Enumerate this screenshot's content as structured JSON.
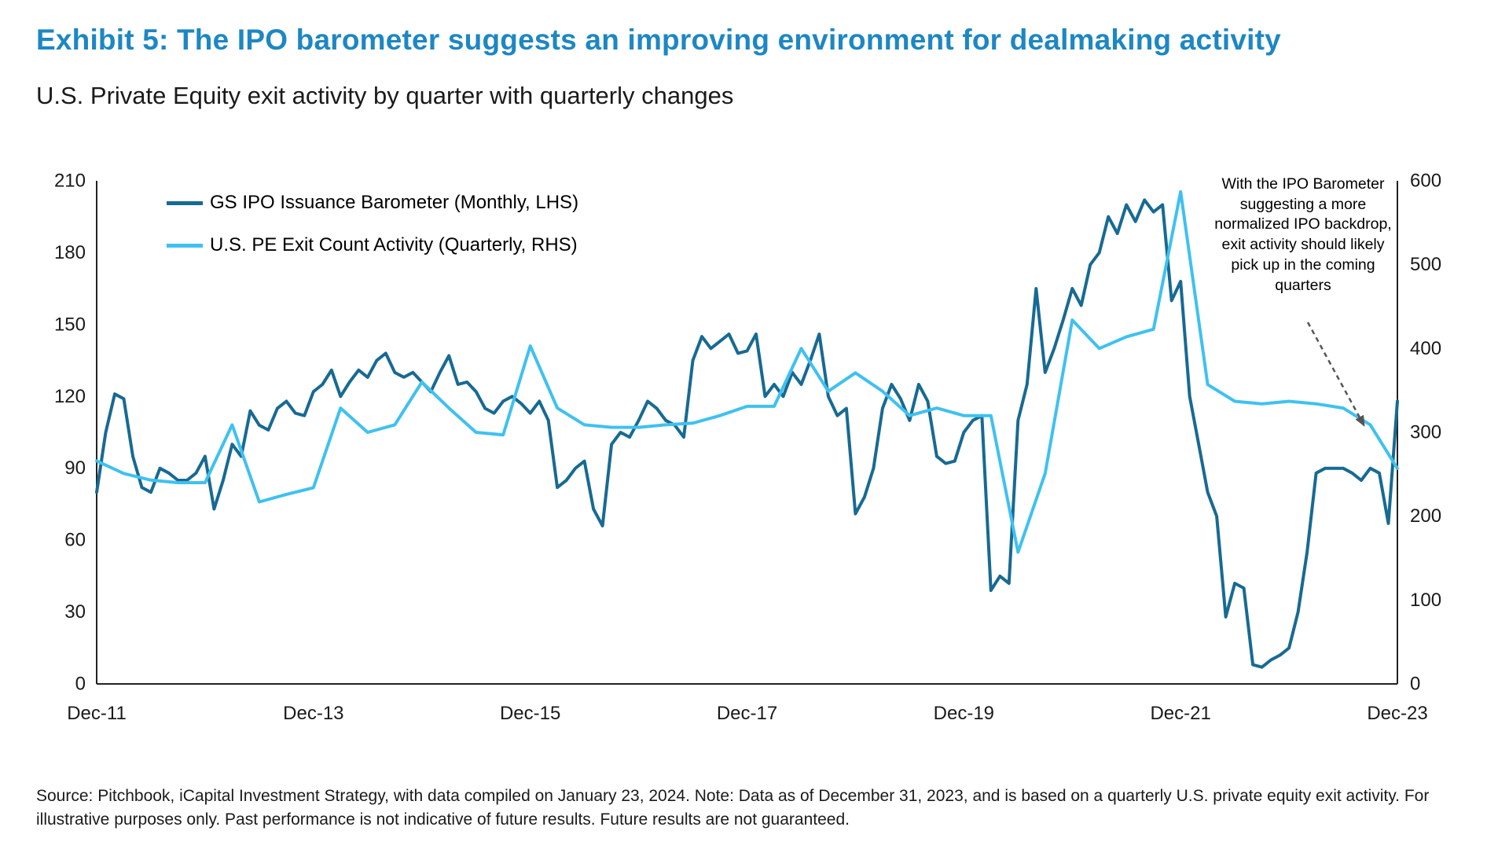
{
  "header": {
    "title": "Exhibit 5: The IPO barometer suggests an improving environment for dealmaking activity",
    "subtitle": "U.S. Private Equity exit activity by quarter with quarterly changes"
  },
  "colors": {
    "title_blue": "#1D87C3",
    "dark_line": "#176A93",
    "light_line": "#3FC1F0",
    "axis": "#222222",
    "text": "#1A1A1A",
    "arrow": "#555555"
  },
  "footer": {
    "source": "Source: Pitchbook, iCapital Investment Strategy, with data compiled on January 23, 2024. Note: Data as of December 31, 2023, and is based on a quarterly U.S. private equity exit activity. For illustrative purposes only. Past performance is not indicative of future results. Future results are not guaranteed."
  },
  "chart_data": {
    "type": "line",
    "title": "Exhibit 5: The IPO barometer suggests an improving environment for dealmaking activity",
    "subtitle": "U.S. Private Equity exit activity by quarter with quarterly changes",
    "x_range": [
      "Dec-11",
      "Dec-23"
    ],
    "total_months": 144,
    "x_tick_interval_months": 24,
    "x_tick_labels": [
      "Dec-11",
      "Dec-13",
      "Dec-15",
      "Dec-17",
      "Dec-19",
      "Dec-21",
      "Dec-23"
    ],
    "left_axis": {
      "min": 0,
      "max": 210,
      "ticks": [
        0,
        30,
        60,
        90,
        120,
        150,
        180,
        210
      ]
    },
    "right_axis": {
      "min": 0,
      "max": 600,
      "ticks": [
        0,
        100,
        200,
        300,
        400,
        500,
        600
      ]
    },
    "grid": false,
    "legend_position": "top-left-inside",
    "series": [
      {
        "name": "GS IPO Issuance Barometer (Monthly, LHS)",
        "axis": "left",
        "frequency": "monthly",
        "color": "#176A93",
        "start": "Dec-11",
        "values": [
          80,
          105,
          121,
          119,
          95,
          82,
          80,
          90,
          88,
          85,
          85,
          88,
          95,
          73,
          85,
          100,
          95,
          114,
          108,
          106,
          115,
          118,
          113,
          112,
          122,
          125,
          131,
          120,
          126,
          131,
          128,
          135,
          138,
          130,
          128,
          130,
          126,
          122,
          130,
          137,
          125,
          126,
          122,
          115,
          113,
          118,
          120,
          117,
          113,
          118,
          110,
          82,
          85,
          90,
          93,
          73,
          66,
          100,
          105,
          103,
          110,
          118,
          115,
          110,
          108,
          103,
          135,
          145,
          140,
          143,
          146,
          138,
          139,
          146,
          120,
          125,
          120,
          130,
          125,
          135,
          146,
          120,
          112,
          115,
          71,
          78,
          90,
          115,
          125,
          119,
          110,
          125,
          118,
          95,
          92,
          93,
          105,
          110,
          112,
          39,
          45,
          42,
          110,
          125,
          165,
          130,
          140,
          152,
          165,
          158,
          175,
          180,
          195,
          188,
          200,
          193,
          202,
          197,
          200,
          160,
          168,
          120,
          100,
          80,
          70,
          28,
          42,
          40,
          8,
          7,
          10,
          12,
          15,
          30,
          55,
          88,
          90,
          90,
          90,
          88,
          85,
          90,
          88,
          67,
          118
        ]
      },
      {
        "name": "U.S. PE Exit Count Activity (Quarterly, RHS)",
        "axis": "right",
        "frequency": "quarterly",
        "color": "#3FC1F0",
        "start": "Dec-11",
        "values": [
          266,
          251,
          243,
          240,
          240,
          309,
          217,
          226,
          234,
          329,
          300,
          309,
          360,
          329,
          300,
          297,
          403,
          329,
          309,
          306,
          306,
          309,
          311,
          320,
          331,
          331,
          400,
          349,
          371,
          349,
          320,
          329,
          320,
          320,
          157,
          251,
          434,
          400,
          414,
          423,
          587,
          357,
          337,
          334,
          337,
          334,
          329,
          309,
          257
        ]
      }
    ],
    "annotations": [
      {
        "text": "With the IPO Barometer suggesting a more normalized IPO backdrop, exit activity should likely pick up in the coming quarters",
        "position": "top-right",
        "arrow_to": "end of U.S. PE Exit Count line"
      }
    ]
  }
}
